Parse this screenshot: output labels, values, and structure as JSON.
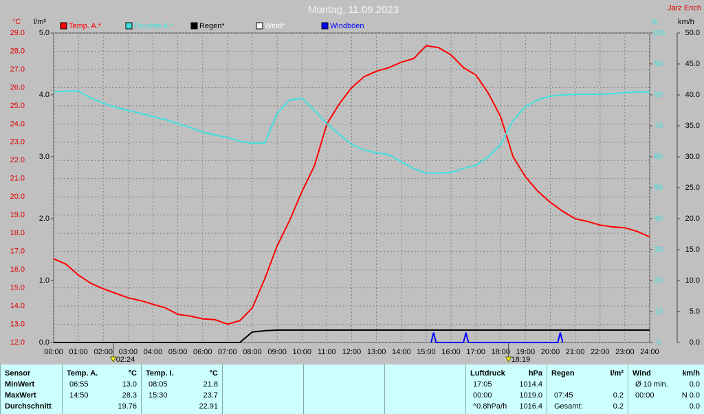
{
  "chart_data": {
    "type": "line",
    "title": "Montag, 11.09.2023",
    "owner": "Jarz Erich",
    "units": {
      "y": "°C",
      "y3": "l/m²",
      "y2": "%",
      "y4": "km/h"
    },
    "xlim": [
      0,
      24
    ],
    "xticks": [
      {
        "value": 0,
        "label": "00:00"
      },
      {
        "value": 1,
        "label": "01:00"
      },
      {
        "value": 2,
        "label": "02:00"
      },
      {
        "value": 3,
        "label": "03:00"
      },
      {
        "value": 4,
        "label": "04:00"
      },
      {
        "value": 5,
        "label": "05:00"
      },
      {
        "value": 6,
        "label": "06:00"
      },
      {
        "value": 7,
        "label": "07:00"
      },
      {
        "value": 8,
        "label": "08:00"
      },
      {
        "value": 9,
        "label": "09:00"
      },
      {
        "value": 10,
        "label": "10:00"
      },
      {
        "value": 11,
        "label": "11:00"
      },
      {
        "value": 12,
        "label": "12:00"
      },
      {
        "value": 13,
        "label": "13:00"
      },
      {
        "value": 14,
        "label": "14:00"
      },
      {
        "value": 15,
        "label": "15:00"
      },
      {
        "value": 16,
        "label": "16:00"
      },
      {
        "value": 17,
        "label": "17:00"
      },
      {
        "value": 18,
        "label": "18:00"
      },
      {
        "value": 19,
        "label": "19:00"
      },
      {
        "value": 20,
        "label": "20:00"
      },
      {
        "value": 21,
        "label": "21:00"
      },
      {
        "value": 22,
        "label": "22:00"
      },
      {
        "value": 23,
        "label": "23:00"
      },
      {
        "value": 24,
        "label": "24:00"
      }
    ],
    "ylim": [
      12,
      29
    ],
    "yticks": [
      {
        "value": 12,
        "label": "12.0"
      },
      {
        "value": 13,
        "label": "13.0"
      },
      {
        "value": 14,
        "label": "14.0"
      },
      {
        "value": 15,
        "label": "15.0"
      },
      {
        "value": 16,
        "label": "16.0"
      },
      {
        "value": 17,
        "label": "17.0"
      },
      {
        "value": 18,
        "label": "18.0"
      },
      {
        "value": 19,
        "label": "19.0"
      },
      {
        "value": 20,
        "label": "20.0"
      },
      {
        "value": 21,
        "label": "21.0"
      },
      {
        "value": 22,
        "label": "22.0"
      },
      {
        "value": 23,
        "label": "23.0"
      },
      {
        "value": 24,
        "label": "24.0"
      },
      {
        "value": 25,
        "label": "25.0"
      },
      {
        "value": 26,
        "label": "26.0"
      },
      {
        "value": 27,
        "label": "27.0"
      },
      {
        "value": 28,
        "label": "28.0"
      },
      {
        "value": 29,
        "label": "29.0"
      }
    ],
    "y3lim": [
      0,
      5
    ],
    "y3ticks": [
      {
        "value": 0,
        "label": "0.0"
      },
      {
        "value": 1,
        "label": "1.0"
      },
      {
        "value": 2,
        "label": "2.0"
      },
      {
        "value": 3,
        "label": "3.0"
      },
      {
        "value": 4,
        "label": "4.0"
      },
      {
        "value": 5,
        "label": "5.0"
      }
    ],
    "y2lim": [
      0,
      100
    ],
    "y2ticks": [
      0,
      10,
      20,
      30,
      40,
      50,
      60,
      70,
      80,
      90,
      100
    ],
    "y4lim": [
      0,
      50
    ],
    "y4ticks": [
      {
        "value": 0,
        "label": "0.0"
      },
      {
        "value": 5,
        "label": "5.0"
      },
      {
        "value": 10,
        "label": "10.0"
      },
      {
        "value": 15,
        "label": "15.0"
      },
      {
        "value": 20,
        "label": "20.0"
      },
      {
        "value": 25,
        "label": "25.0"
      },
      {
        "value": 30,
        "label": "30.0"
      },
      {
        "value": 35,
        "label": "35.0"
      },
      {
        "value": 40,
        "label": "40.0"
      },
      {
        "value": 45,
        "label": "45.0"
      },
      {
        "value": 50,
        "label": "50.0"
      }
    ],
    "grid": true,
    "x": [
      0,
      0.5,
      1,
      1.5,
      2,
      2.5,
      3,
      3.5,
      4,
      4.5,
      5,
      5.5,
      6,
      6.5,
      7,
      7.5,
      8,
      8.5,
      9,
      9.5,
      10,
      10.5,
      11,
      11.5,
      12,
      12.5,
      13,
      13.5,
      14,
      14.5,
      15,
      15.5,
      16,
      16.5,
      17,
      17.5,
      18,
      18.5,
      19,
      19.5,
      20,
      20.5,
      21,
      21.5,
      22,
      22.5,
      23,
      23.5,
      24
    ],
    "series": [
      {
        "name": "Temp. A.*",
        "color": "#ff0000",
        "axis": "y",
        "values": [
          16.6,
          16.3,
          15.7,
          15.25,
          14.95,
          14.7,
          14.45,
          14.3,
          14.1,
          13.9,
          13.55,
          13.45,
          13.3,
          13.25,
          13.0,
          13.2,
          13.9,
          15.5,
          17.3,
          18.7,
          20.3,
          21.7,
          24.0,
          25.1,
          26.0,
          26.6,
          26.9,
          27.1,
          27.4,
          27.6,
          28.3,
          28.2,
          27.8,
          27.1,
          26.7,
          25.7,
          24.4,
          22.2,
          21.1,
          20.3,
          19.7,
          19.2,
          18.8,
          18.65,
          18.45,
          18.35,
          18.3,
          18.1,
          17.8
        ]
      },
      {
        "name": "Feuchte A.*",
        "color": "#40e0e0",
        "axis": "y2",
        "values": [
          81,
          81.2,
          81.3,
          79,
          77.3,
          76,
          75,
          74,
          73,
          72,
          70.7,
          69.5,
          68,
          67,
          66.2,
          65,
          64.4,
          64.4,
          74,
          78.4,
          78.9,
          75,
          70.7,
          67.3,
          64,
          62.2,
          61.3,
          60.7,
          58.4,
          56.2,
          54.7,
          54.7,
          55,
          56.2,
          57.3,
          60,
          64,
          71.8,
          76.2,
          78.4,
          79.6,
          80,
          80.2,
          80.2,
          80.2,
          80.4,
          80.7,
          80.9,
          80.9
        ]
      },
      {
        "name": "Regen*",
        "color": "#000000",
        "axis": "y3",
        "values": [
          0,
          0,
          0,
          0,
          0,
          0,
          0,
          0,
          0,
          0,
          0,
          0,
          0,
          0,
          0,
          0,
          0.17,
          0.19,
          0.2,
          0.2,
          0.2,
          0.2,
          0.2,
          0.2,
          0.2,
          0.2,
          0.2,
          0.2,
          0.2,
          0.2,
          0.2,
          0.2,
          0.2,
          0.2,
          0.2,
          0.2,
          0.2,
          0.2,
          0.2,
          0.2,
          0.2,
          0.2,
          0.2,
          0.2,
          0.2,
          0.2,
          0.2,
          0.2,
          0.2
        ]
      },
      {
        "name": "Wind*",
        "color": "#ffffff",
        "axis": "y4"
      },
      {
        "name": "Windböen",
        "color": "#0000ff",
        "axis": "y4",
        "x": [
          15.2,
          15.3,
          15.4,
          16.5,
          16.6,
          16.7,
          20.3,
          20.4,
          20.5
        ],
        "values": [
          0,
          1.6,
          0,
          0,
          1.6,
          0,
          0,
          1.6,
          0
        ]
      }
    ],
    "annotations": [
      {
        "label": "02:24",
        "x": 2.4
      },
      {
        "label": "18:19",
        "x": 18.317
      }
    ]
  },
  "table": {
    "columns": [
      {
        "header": [
          "Sensor"
        ],
        "rows": [
          {
            "value": "MinWert"
          },
          {
            "value": "MaxWert"
          },
          {
            "value": "Durchschnitt"
          }
        ]
      },
      {
        "header": [
          "Temp. A.",
          "°C"
        ],
        "rows": [
          {
            "time": "06:55",
            "value": "13.0"
          },
          {
            "time": "14:50",
            "value": "28.3"
          },
          {
            "value": "19.76"
          }
        ]
      },
      {
        "header": [
          "Temp. I.",
          "°C"
        ],
        "rows": [
          {
            "time": "08:05",
            "value": "21.8"
          },
          {
            "time": "15:30",
            "value": "23.7"
          },
          {
            "value": "22.91"
          }
        ]
      },
      {
        "header": [
          "Luftdruck",
          "hPa"
        ],
        "rows": [
          {
            "time": "17:05",
            "value": "1014.4"
          },
          {
            "time": "00:00",
            "value": "1019.0"
          },
          {
            "time": "^0.8hPa/h",
            "value": "1016.4"
          }
        ]
      },
      {
        "header": [
          "Regen",
          "l/m²"
        ],
        "rows": [
          {},
          {
            "time": "07:45",
            "value": "0.2"
          },
          {
            "time": "Gesamt:",
            "value": "0.2"
          }
        ]
      },
      {
        "header": [
          "Wind",
          "km/h"
        ],
        "rows": [
          {
            "time": "Ø 10 min.",
            "value": "0.0"
          },
          {
            "time": "00:00",
            "value": "N 0.0"
          },
          {
            "value": "0.0"
          }
        ]
      }
    ]
  }
}
